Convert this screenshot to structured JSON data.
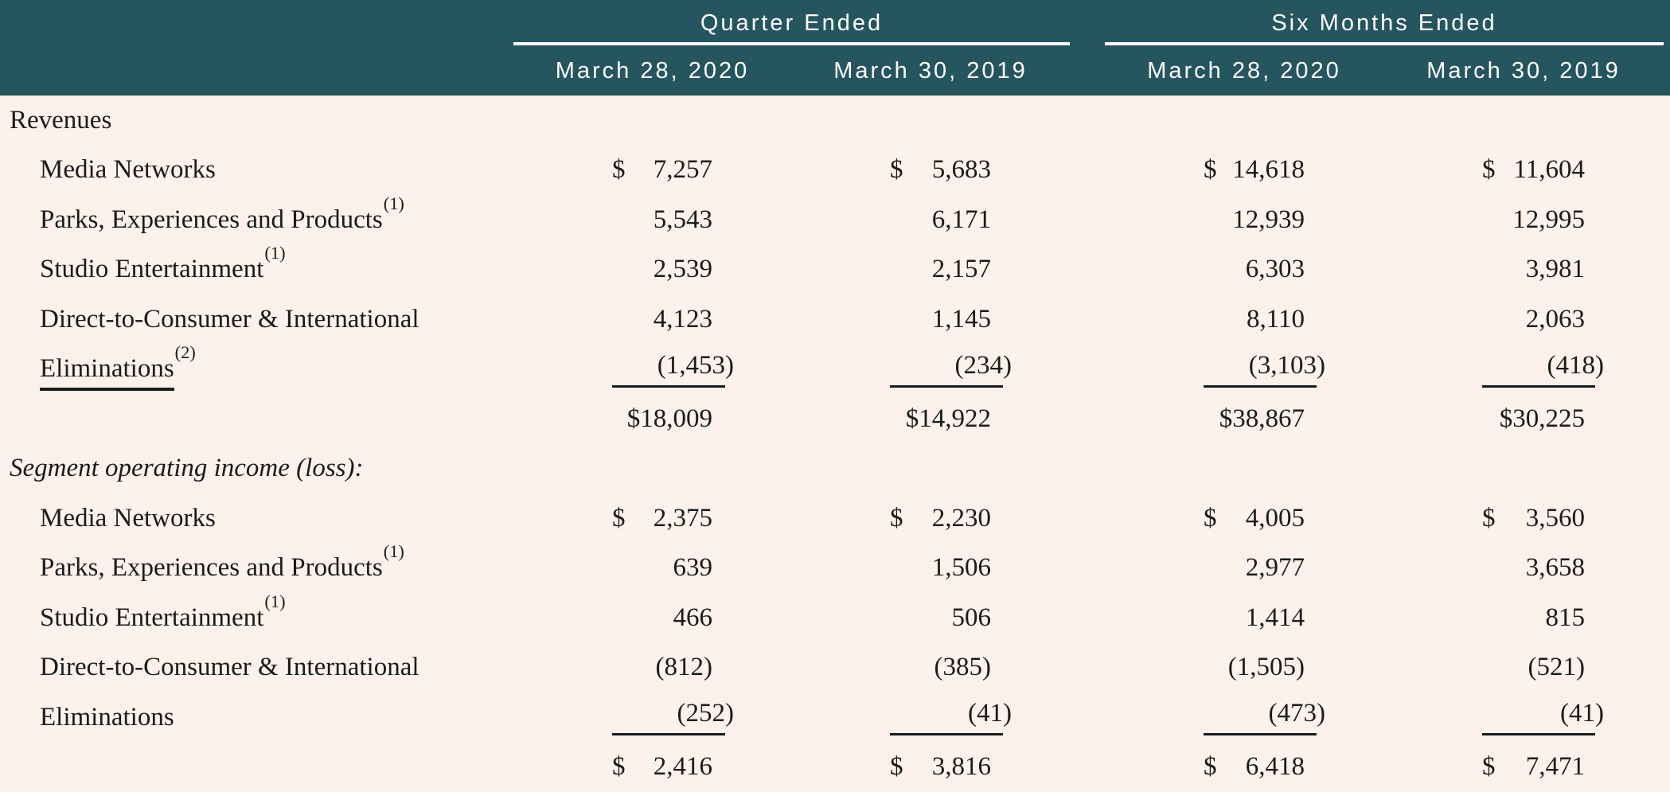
{
  "colors": {
    "header_bg": "#25555E",
    "header_text": "#FFFFFF",
    "body_bg": "#FCF1EB",
    "body_text": "#1B1B1B"
  },
  "header": {
    "groups": [
      {
        "label": "Quarter Ended"
      },
      {
        "label": "Six Months Ended"
      }
    ],
    "dates": [
      "March 28, 2020",
      "March 30, 2019",
      "March 28, 2020",
      "March 30, 2019"
    ]
  },
  "rows": [
    {
      "type": "section",
      "label": {
        "text": "Revenues"
      }
    },
    {
      "type": "item",
      "label": {
        "text": "Media Networks"
      },
      "values": [
        {
          "d": "$",
          "v": "7,257"
        },
        {
          "d": "$",
          "v": "5,683"
        },
        {
          "d": "$",
          "v": "14,618"
        },
        {
          "d": "$",
          "v": "11,604"
        }
      ]
    },
    {
      "type": "item",
      "label": {
        "text": "Parks, Experiences and Products",
        "sup": "(1)"
      },
      "values": [
        {
          "v": "5,543"
        },
        {
          "v": "6,171"
        },
        {
          "v": "12,939"
        },
        {
          "v": "12,995"
        }
      ]
    },
    {
      "type": "item",
      "label": {
        "text": "Studio Entertainment",
        "sup": "(1)"
      },
      "values": [
        {
          "v": "2,539"
        },
        {
          "v": "2,157"
        },
        {
          "v": "6,303"
        },
        {
          "v": "3,981"
        }
      ]
    },
    {
      "type": "item",
      "label": {
        "text": "Direct-to-Consumer & International"
      },
      "values": [
        {
          "v": "4,123"
        },
        {
          "v": "1,145"
        },
        {
          "v": "8,110"
        },
        {
          "v": "2,063"
        }
      ]
    },
    {
      "type": "item",
      "label": {
        "text": "Eliminations",
        "sup": "(2)",
        "underline": true
      },
      "values": [
        {
          "v": "(1,453)",
          "u": true
        },
        {
          "v": "(234)",
          "u": true
        },
        {
          "v": "(3,103)",
          "u": true
        },
        {
          "v": "(418)",
          "u": true
        }
      ]
    },
    {
      "type": "total",
      "values": [
        {
          "v": "$18,009"
        },
        {
          "v": "$14,922"
        },
        {
          "v": "$38,867"
        },
        {
          "v": "$30,225"
        }
      ]
    },
    {
      "type": "section",
      "label": {
        "text": "Segment operating income (loss):",
        "italic": true
      }
    },
    {
      "type": "item",
      "label": {
        "text": "Media Networks"
      },
      "values": [
        {
          "d": "$",
          "v": "2,375"
        },
        {
          "d": "$",
          "v": "2,230"
        },
        {
          "d": "$",
          "v": "4,005"
        },
        {
          "d": "$",
          "v": "3,560"
        }
      ]
    },
    {
      "type": "item",
      "label": {
        "text": "Parks, Experiences and Products",
        "sup": "(1)"
      },
      "values": [
        {
          "v": "639"
        },
        {
          "v": "1,506"
        },
        {
          "v": "2,977"
        },
        {
          "v": "3,658"
        }
      ]
    },
    {
      "type": "item",
      "label": {
        "text": "Studio Entertainment",
        "sup": "(1)"
      },
      "values": [
        {
          "v": "466"
        },
        {
          "v": "506"
        },
        {
          "v": "1,414"
        },
        {
          "v": "815"
        }
      ]
    },
    {
      "type": "item",
      "label": {
        "text": "Direct-to-Consumer & International"
      },
      "values": [
        {
          "v": "(812)"
        },
        {
          "v": "(385)"
        },
        {
          "v": "(1,505)"
        },
        {
          "v": "(521)"
        }
      ]
    },
    {
      "type": "item",
      "label": {
        "text": "Eliminations"
      },
      "values": [
        {
          "v": "(252)",
          "u": true
        },
        {
          "v": "(41)",
          "u": true
        },
        {
          "v": "(473)",
          "u": true
        },
        {
          "v": "(41)",
          "u": true
        }
      ]
    },
    {
      "type": "total",
      "values": [
        {
          "d": "$",
          "v": "2,416"
        },
        {
          "d": "$",
          "v": "3,816"
        },
        {
          "d": "$",
          "v": "6,418"
        },
        {
          "d": "$",
          "v": "7,471"
        }
      ]
    }
  ]
}
